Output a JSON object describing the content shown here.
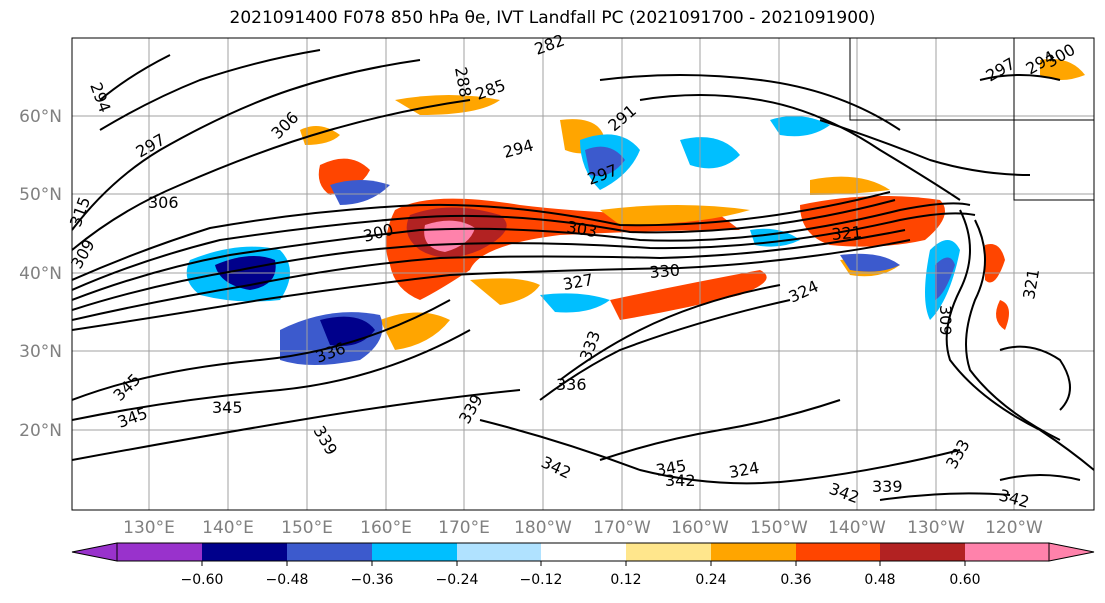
{
  "title": "2021091400 F078 850 hPa θe, IVT Landfall PC (2021091700 - 2021091900)",
  "map": {
    "lat_labels": [
      "60°N",
      "50°N",
      "40°N",
      "30°N",
      "20°N"
    ],
    "lon_labels": [
      "130°E",
      "140°E",
      "150°E",
      "160°E",
      "170°E",
      "180°W",
      "170°W",
      "160°W",
      "150°W",
      "140°W",
      "130°W",
      "120°W"
    ],
    "contour_labels": [
      "294",
      "297",
      "306",
      "315",
      "309",
      "306",
      "288",
      "282",
      "285",
      "291",
      "294",
      "297",
      "300",
      "303",
      "321",
      "327",
      "330",
      "324",
      "336",
      "333",
      "336",
      "339",
      "342",
      "345",
      "345",
      "345",
      "339",
      "342",
      "345",
      "324",
      "342",
      "339",
      "342",
      "309",
      "321",
      "333",
      "297",
      "294",
      "300"
    ]
  },
  "colorbar": {
    "tick_labels": [
      "−0.60",
      "−0.48",
      "−0.36",
      "−0.24",
      "−0.12",
      "0.12",
      "0.24",
      "0.36",
      "0.48",
      "0.60"
    ],
    "colors": [
      "#9932cc",
      "#00008b",
      "#3c5acd",
      "#00bfff",
      "#b0e2ff",
      "#ffffff",
      "#ffe68c",
      "#ffa500",
      "#ff4500",
      "#b22222",
      "#ff82ab"
    ]
  }
}
